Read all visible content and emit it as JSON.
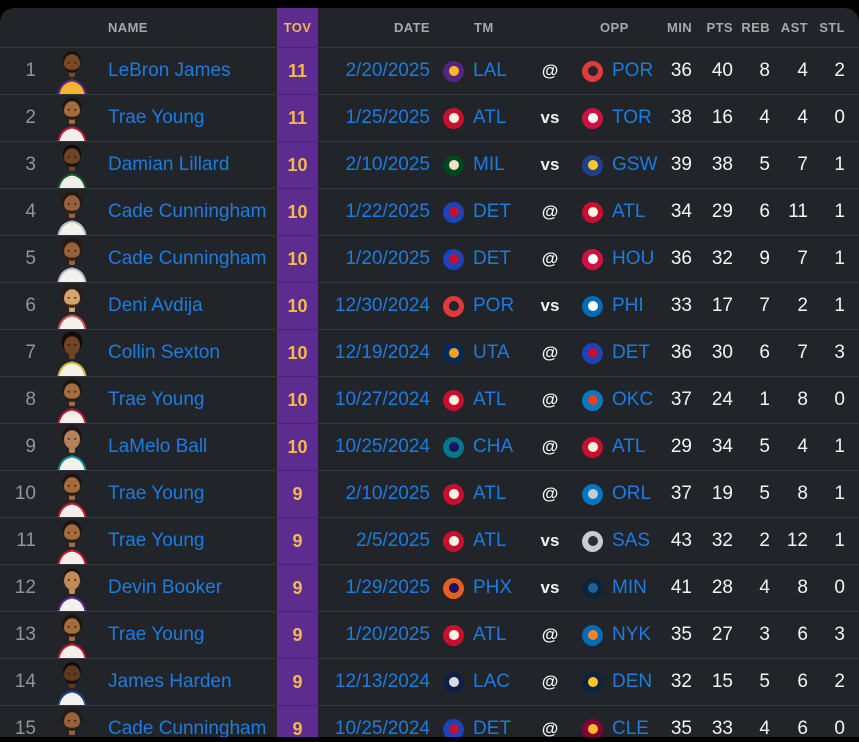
{
  "colors": {
    "panel_bg": "#212429",
    "accent_purple": "#5c2d8f",
    "accent_gold": "#f3b84f",
    "link_blue": "#1c7ce0",
    "stat_white": "#f4f4f4",
    "header_gray": "#a6a8ac",
    "rank_gray": "#939599",
    "separator": "#35383e"
  },
  "table": {
    "columns": {
      "name": "NAME",
      "tov": "TOV",
      "date": "DATE",
      "tm": "TM",
      "opp": "OPP",
      "min": "MIN",
      "pts": "PTS",
      "reb": "REB",
      "ast": "AST",
      "stl": "STL"
    },
    "rows": [
      {
        "rank": "1",
        "name": "LeBron James",
        "tov": "11",
        "date": "2/20/2025",
        "tm": "LAL",
        "loc": "@",
        "opp": "POR",
        "min": "36",
        "pts": "40",
        "reb": "8",
        "ast": "4",
        "stl": "2",
        "avatar": {
          "skin": "#7a4a24",
          "hair": "#17110c",
          "hairR": 8.8,
          "beard": true,
          "jersey": "#f6b52a",
          "trim": "#5a2a84"
        }
      },
      {
        "rank": "2",
        "name": "Trae Young",
        "tov": "11",
        "date": "1/25/2025",
        "tm": "ATL",
        "loc": "vs",
        "opp": "TOR",
        "min": "38",
        "pts": "16",
        "reb": "4",
        "ast": "4",
        "stl": "0",
        "avatar": {
          "skin": "#a36b3e",
          "hair": "#1c140e",
          "hairR": 9.6,
          "beard": true,
          "jersey": "#f3f0ea",
          "trim": "#c8102e"
        }
      },
      {
        "rank": "3",
        "name": "Damian Lillard",
        "tov": "10",
        "date": "2/10/2025",
        "tm": "MIL",
        "loc": "vs",
        "opp": "GSW",
        "min": "39",
        "pts": "38",
        "reb": "5",
        "ast": "7",
        "stl": "1",
        "avatar": {
          "skin": "#6e4423",
          "hair": "#100c08",
          "hairR": 9.2,
          "beard": true,
          "jersey": "#f2efe9",
          "trim": "#0a5c2c"
        }
      },
      {
        "rank": "4",
        "name": "Cade Cunningham",
        "tov": "10",
        "date": "1/22/2025",
        "tm": "DET",
        "loc": "@",
        "opp": "ATL",
        "min": "34",
        "pts": "29",
        "reb": "6",
        "ast": "11",
        "stl": "1",
        "avatar": {
          "skin": "#96613a",
          "hair": "#241a12",
          "hairR": 10,
          "beard": true,
          "jersey": "#f3f1ec",
          "trim": "#b8bdc4"
        }
      },
      {
        "rank": "5",
        "name": "Cade Cunningham",
        "tov": "10",
        "date": "1/20/2025",
        "tm": "DET",
        "loc": "@",
        "opp": "HOU",
        "min": "36",
        "pts": "32",
        "reb": "9",
        "ast": "7",
        "stl": "1",
        "avatar": {
          "skin": "#96613a",
          "hair": "#241a12",
          "hairR": 10,
          "beard": true,
          "jersey": "#f3f1ec",
          "trim": "#b8bdc4"
        }
      },
      {
        "rank": "6",
        "name": "Deni Avdija",
        "tov": "10",
        "date": "12/30/2024",
        "tm": "POR",
        "loc": "vs",
        "opp": "PHI",
        "min": "33",
        "pts": "17",
        "reb": "7",
        "ast": "2",
        "stl": "1",
        "avatar": {
          "skin": "#d6a26e",
          "hair": "#2b1d12",
          "hairR": 10.4,
          "beard": true,
          "jersey": "#f3f1ec",
          "trim": "#d34547"
        }
      },
      {
        "rank": "7",
        "name": "Collin Sexton",
        "tov": "10",
        "date": "12/19/2024",
        "tm": "UTA",
        "loc": "@",
        "opp": "DET",
        "min": "36",
        "pts": "30",
        "reb": "6",
        "ast": "7",
        "stl": "3",
        "avatar": {
          "skin": "#6e4423",
          "hair": "#120d09",
          "hairR": 10.6,
          "beard": false,
          "jersey": "#f5f2ea",
          "trim": "#d9b13b"
        }
      },
      {
        "rank": "8",
        "name": "Trae Young",
        "tov": "10",
        "date": "10/27/2024",
        "tm": "ATL",
        "loc": "@",
        "opp": "OKC",
        "min": "37",
        "pts": "24",
        "reb": "1",
        "ast": "8",
        "stl": "0",
        "avatar": {
          "skin": "#a36b3e",
          "hair": "#1c140e",
          "hairR": 9.6,
          "beard": true,
          "jersey": "#f3f0ea",
          "trim": "#c8102e"
        }
      },
      {
        "rank": "9",
        "name": "LaMelo Ball",
        "tov": "10",
        "date": "10/25/2024",
        "tm": "CHA",
        "loc": "@",
        "opp": "ATL",
        "min": "29",
        "pts": "34",
        "reb": "5",
        "ast": "4",
        "stl": "1",
        "avatar": {
          "skin": "#b5815a",
          "hair": "#1f150d",
          "hairR": 9.8,
          "beard": false,
          "jersey": "#f3f1ec",
          "trim": "#0f8b96"
        }
      },
      {
        "rank": "10",
        "name": "Trae Young",
        "tov": "9",
        "date": "2/10/2025",
        "tm": "ATL",
        "loc": "@",
        "opp": "ORL",
        "min": "37",
        "pts": "19",
        "reb": "5",
        "ast": "8",
        "stl": "1",
        "avatar": {
          "skin": "#a36b3e",
          "hair": "#1c140e",
          "hairR": 9.6,
          "beard": true,
          "jersey": "#f3f0ea",
          "trim": "#c8102e"
        }
      },
      {
        "rank": "11",
        "name": "Trae Young",
        "tov": "9",
        "date": "2/5/2025",
        "tm": "ATL",
        "loc": "vs",
        "opp": "SAS",
        "min": "43",
        "pts": "32",
        "reb": "2",
        "ast": "12",
        "stl": "1",
        "avatar": {
          "skin": "#a36b3e",
          "hair": "#1c140e",
          "hairR": 9.6,
          "beard": true,
          "jersey": "#f3f0ea",
          "trim": "#c8102e"
        }
      },
      {
        "rank": "12",
        "name": "Devin Booker",
        "tov": "9",
        "date": "1/29/2025",
        "tm": "PHX",
        "loc": "vs",
        "opp": "MIN",
        "min": "41",
        "pts": "28",
        "reb": "4",
        "ast": "8",
        "stl": "0",
        "avatar": {
          "skin": "#c28a58",
          "hair": "#17110c",
          "hairR": 8.6,
          "beard": false,
          "jersey": "#f3f1ec",
          "trim": "#5f259f"
        }
      },
      {
        "rank": "13",
        "name": "Trae Young",
        "tov": "9",
        "date": "1/20/2025",
        "tm": "ATL",
        "loc": "@",
        "opp": "NYK",
        "min": "35",
        "pts": "27",
        "reb": "3",
        "ast": "6",
        "stl": "3",
        "avatar": {
          "skin": "#a36b3e",
          "hair": "#1c140e",
          "hairR": 9.6,
          "beard": true,
          "jersey": "#f3f0ea",
          "trim": "#c8102e"
        }
      },
      {
        "rank": "14",
        "name": "James Harden",
        "tov": "9",
        "date": "12/13/2024",
        "tm": "LAC",
        "loc": "@",
        "opp": "DEN",
        "min": "32",
        "pts": "15",
        "reb": "5",
        "ast": "6",
        "stl": "2",
        "avatar": {
          "skin": "#5e3a1e",
          "hair": "#0d0a07",
          "hairR": 8.8,
          "beard": true,
          "jersey": "#f4f2ed",
          "trim": "#1c3f8f"
        }
      },
      {
        "rank": "15",
        "name": "Cade Cunningham",
        "tov": "9",
        "date": "10/25/2024",
        "tm": "DET",
        "loc": "@",
        "opp": "CLE",
        "min": "35",
        "pts": "33",
        "reb": "4",
        "ast": "6",
        "stl": "0",
        "avatar": {
          "skin": "#96613a",
          "hair": "#241a12",
          "hairR": 10,
          "beard": true,
          "jersey": "#f3f1ec",
          "trim": "#b8bdc4"
        }
      }
    ]
  },
  "teams": {
    "LAL": {
      "bg": "#552583",
      "fg": "#FDB927"
    },
    "ATL": {
      "bg": "#C8102E",
      "fg": "#fdf3e3"
    },
    "MIL": {
      "bg": "#00471B",
      "fg": "#EEE1C6"
    },
    "DET": {
      "bg": "#1D42BA",
      "fg": "#C8102E"
    },
    "POR": {
      "bg": "#E03A3E",
      "fg": "#24262b"
    },
    "UTA": {
      "bg": "#002B5C",
      "fg": "#F9A01B"
    },
    "CHA": {
      "bg": "#00788C",
      "fg": "#1D1160"
    },
    "PHX": {
      "bg": "#E56020",
      "fg": "#1D1160"
    },
    "LAC": {
      "bg": "#101f45",
      "fg": "#d8dbe2"
    },
    "TOR": {
      "bg": "#CE1141",
      "fg": "#ffffff"
    },
    "GSW": {
      "bg": "#1D428A",
      "fg": "#FFC72C"
    },
    "HOU": {
      "bg": "#CE1141",
      "fg": "#ffffff"
    },
    "PHI": {
      "bg": "#006BB6",
      "fg": "#ffffff"
    },
    "OKC": {
      "bg": "#007AC1",
      "fg": "#EF3B24"
    },
    "ORL": {
      "bg": "#0077C0",
      "fg": "#C4CED4"
    },
    "SAS": {
      "bg": "#C4CED4",
      "fg": "#2b2d32"
    },
    "MIN": {
      "bg": "#0C2340",
      "fg": "#236192"
    },
    "NYK": {
      "bg": "#006BB6",
      "fg": "#F58426"
    },
    "DEN": {
      "bg": "#0E2240",
      "fg": "#FEC524"
    },
    "CLE": {
      "bg": "#860038",
      "fg": "#FDBB30"
    }
  }
}
